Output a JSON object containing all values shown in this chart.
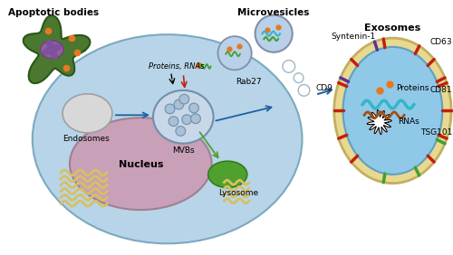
{
  "labels": {
    "apoptotic_bodies": "Apoptotic bodies",
    "microvesicles": "Microvesicles",
    "exosomes": "Exosomes",
    "endosomes": "Endosomes",
    "mvbs": "MVBs",
    "nucleus": "Nucleus",
    "lysosome": "Lysosome",
    "rab27": "Rab27",
    "proteins_rnas": "Proteins, RNAs",
    "cd9": "CD9",
    "cd81": "CD81",
    "cd63": "CD63",
    "tsg101": "TSG101",
    "syntenin1": "Syntenin-1",
    "proteins": "Proteins",
    "rnas": "RNAs"
  },
  "colors": {
    "bg_color": "#ffffff",
    "cell_fill": "#b8d4e8",
    "cell_edge": "#7aaabf",
    "nucleus_fill": "#c8a0b8",
    "nucleus_edge": "#a08090",
    "endosome_fill": "#d8d8d8",
    "endosome_edge": "#a0a0a0",
    "mvb_fill": "#c8d8e8",
    "mvb_edge": "#7090a8",
    "mvb_inner_fill": "#a8c0d8",
    "lysosome_fill": "#50a030",
    "lysosome_edge": "#308020",
    "exo_outer_fill": "#e8d890",
    "exo_outer_edge": "#c0b060",
    "exo_inner_fill": "#90c8e8",
    "exo_inner_edge": "#60a0c0",
    "apoptotic_fill": "#4a7830",
    "apoptotic_edge": "#2a5818",
    "microvesicle_fill": "#b8d0e8",
    "microvesicle_edge": "#8090a8",
    "orange": "#e87820",
    "green": "#40a030",
    "red": "#c02010",
    "blue_arrow": "#2060a0",
    "cyan_wave": "#30b8c8",
    "brown_wave": "#a05010",
    "purple": "#6030a0",
    "yellow_er": "#d8c060",
    "white": "#ffffff",
    "black": "#000000"
  }
}
